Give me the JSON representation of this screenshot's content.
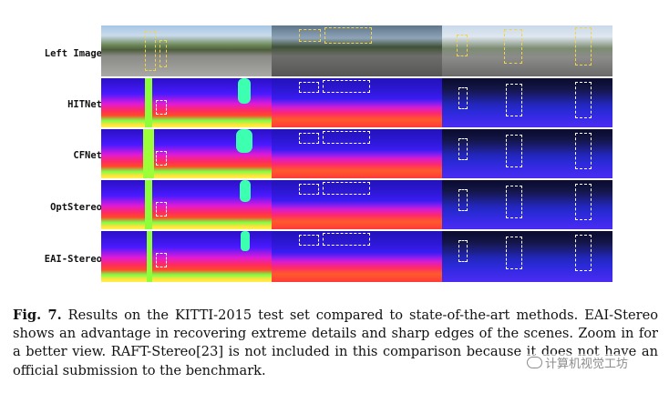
{
  "figure": {
    "rows": [
      {
        "label": "Left Image"
      },
      {
        "label": "HITNet"
      },
      {
        "label": "CFNet"
      },
      {
        "label": "OptStereo"
      },
      {
        "label": "EAI-Stereo"
      }
    ]
  },
  "caption": {
    "fig_label": "Fig. 7.",
    "text": " Results on the KITTI-2015 test set compared to state-of-the-art methods. EAI-Stereo shows an advantage in recovering extreme details and sharp edges of the scenes. Zoom in for a better view. RAFT-Stereo[23] is not included in this comparison because it does not have an official submission to the benchmark."
  },
  "watermark": {
    "text": "计算机视觉工坊"
  }
}
